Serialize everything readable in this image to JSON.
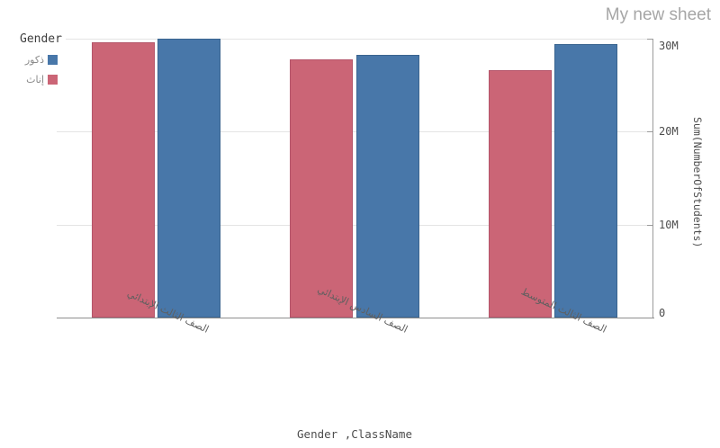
{
  "sheet": {
    "title": "My new sheet"
  },
  "legend": {
    "title": "Gender",
    "items": [
      {
        "label": "ذكور",
        "color": "#4877a9"
      },
      {
        "label": "إناث",
        "color": "#cb6576"
      }
    ]
  },
  "chart_data": {
    "type": "bar",
    "title": "",
    "categories": [
      "الصف الثالث الإبتدائي",
      "الصف السادس الإبتدائي",
      "الصف الثالث المتوسط"
    ],
    "series": [
      {
        "name": "إناث",
        "color": "#cb6576",
        "border_color": "#b4556a",
        "values": [
          29600000,
          27800000,
          26600000
        ]
      },
      {
        "name": "ذكور",
        "color": "#4877a9",
        "border_color": "#3a648f",
        "values": [
          30000000,
          28300000,
          29400000
        ]
      }
    ],
    "xlabel": "Gender ,ClassName",
    "ylabel": "Sum(NumberOfStudents)",
    "ylim": [
      0,
      30000000
    ],
    "yticks": [
      {
        "value": 0,
        "label": "0"
      },
      {
        "value": 10000000,
        "label": "10M"
      },
      {
        "value": 20000000,
        "label": "20M"
      },
      {
        "value": 30000000,
        "label": "30M"
      }
    ],
    "legend_position": "top-left",
    "grid": true
  },
  "colors": {
    "gridline": "#e4e4e4",
    "axis": "#9b9b9b",
    "baseline": "#8f8f8f"
  }
}
